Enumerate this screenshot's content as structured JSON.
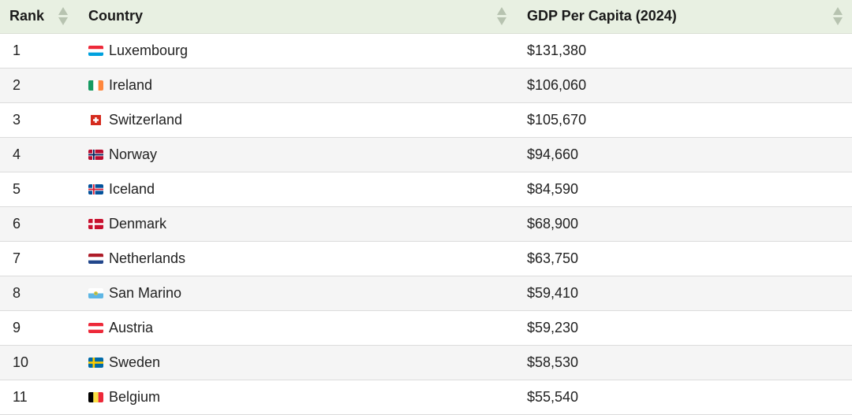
{
  "table": {
    "headers": {
      "rank": "Rank",
      "country": "Country",
      "gdp": "GDP Per Capita (2024)"
    },
    "rows": [
      {
        "rank": "1",
        "country": "Luxembourg",
        "gdp": "$131,380",
        "flag": "luxembourg-flag-icon"
      },
      {
        "rank": "2",
        "country": "Ireland",
        "gdp": "$106,060",
        "flag": "ireland-flag-icon"
      },
      {
        "rank": "3",
        "country": "Switzerland",
        "gdp": "$105,670",
        "flag": "switzerland-flag-icon"
      },
      {
        "rank": "4",
        "country": "Norway",
        "gdp": "$94,660",
        "flag": "norway-flag-icon"
      },
      {
        "rank": "5",
        "country": "Iceland",
        "gdp": "$84,590",
        "flag": "iceland-flag-icon"
      },
      {
        "rank": "6",
        "country": "Denmark",
        "gdp": "$68,900",
        "flag": "denmark-flag-icon"
      },
      {
        "rank": "7",
        "country": "Netherlands",
        "gdp": "$63,750",
        "flag": "netherlands-flag-icon"
      },
      {
        "rank": "8",
        "country": "San Marino",
        "gdp": "$59,410",
        "flag": "san-marino-flag-icon"
      },
      {
        "rank": "9",
        "country": "Austria",
        "gdp": "$59,230",
        "flag": "austria-flag-icon"
      },
      {
        "rank": "10",
        "country": "Sweden",
        "gdp": "$58,530",
        "flag": "sweden-flag-icon"
      },
      {
        "rank": "11",
        "country": "Belgium",
        "gdp": "$55,540",
        "flag": "belgium-flag-icon"
      }
    ]
  },
  "colors": {
    "header_bg": "#e8f0e2",
    "row_alt_bg": "#f5f5f5",
    "sort_icon": "#b7c3b0"
  }
}
